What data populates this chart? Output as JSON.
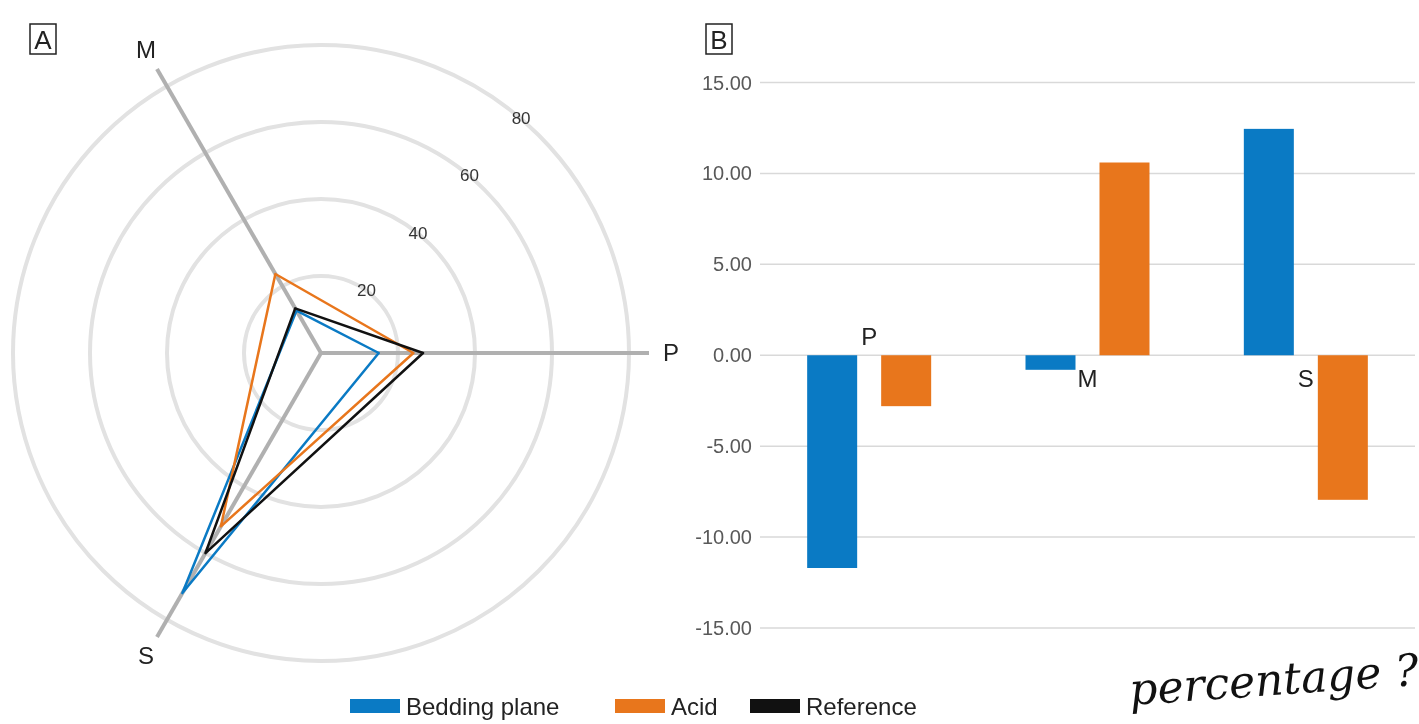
{
  "chart_data": [
    {
      "type": "radar",
      "title": "A",
      "categories": [
        "P",
        "S",
        "M"
      ],
      "ylim": [
        0,
        80
      ],
      "yticks": [
        20,
        40,
        60,
        80
      ],
      "grid": true,
      "legend": "bottom",
      "series": [
        {
          "name": "Bedding plane",
          "color": "#0a7ac4",
          "values": [
            15,
            72,
            12.7
          ]
        },
        {
          "name": "Acid",
          "color": "#e8761c",
          "values": [
            24,
            52,
            23.7
          ]
        },
        {
          "name": "Reference",
          "color": "#111111",
          "values": [
            26.5,
            60,
            13.4
          ]
        }
      ]
    },
    {
      "type": "bar",
      "title": "B",
      "categories": [
        "P",
        "M",
        "S"
      ],
      "ylim": [
        -15,
        15
      ],
      "yticks": [
        {
          "value": 15,
          "label": "15.00"
        },
        {
          "value": 10,
          "label": "10.00"
        },
        {
          "value": 5,
          "label": "5.00"
        },
        {
          "value": 0,
          "label": "0.00"
        },
        {
          "value": -5,
          "label": "-5.00"
        },
        {
          "value": -10,
          "label": "-10.00"
        },
        {
          "value": -15,
          "label": "-15.00"
        }
      ],
      "grid": "y",
      "legend": "bottom",
      "annotations": [
        "percentage ?"
      ],
      "series": [
        {
          "name": "Bedding plane",
          "color": "#0a7ac4",
          "values": [
            -11.7,
            -0.8,
            12.45
          ]
        },
        {
          "name": "Acid",
          "color": "#e8761c",
          "values": [
            -2.8,
            10.6,
            -7.95
          ]
        }
      ]
    }
  ]
}
